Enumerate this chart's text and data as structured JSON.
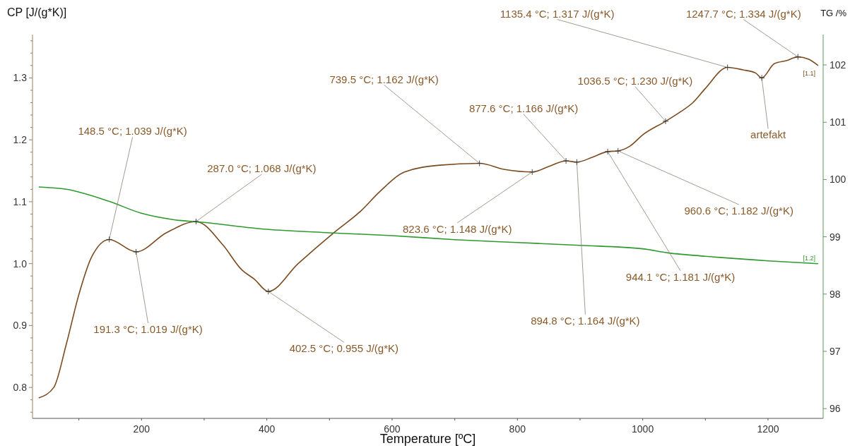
{
  "chart_data": {
    "type": "line",
    "xlabel": "Temperature [ºC]",
    "ylabel": "CP [J/(g*K)]",
    "y2label": "TG /%",
    "xlim": [
      26,
      1288
    ],
    "ylim": [
      0.75,
      1.37
    ],
    "y2lim": [
      95.83,
      102.53
    ],
    "xticks": [
      {
        "value": 100,
        "label": null
      },
      200,
      {
        "value": 300,
        "label": null
      },
      400,
      {
        "value": 500,
        "label": null
      },
      600,
      {
        "value": 700,
        "label": null
      },
      800,
      {
        "value": 900,
        "label": null
      },
      1000,
      {
        "value": 1100,
        "label": null
      },
      1200
    ],
    "yticks": [
      {
        "value": 0.76,
        "label": null
      },
      {
        "value": 0.78,
        "label": null
      },
      0.8,
      {
        "value": 0.82,
        "label": null
      },
      {
        "value": 0.84,
        "label": null
      },
      {
        "value": 0.86,
        "label": null
      },
      {
        "value": 0.88,
        "label": null
      },
      0.9,
      {
        "value": 0.92,
        "label": null
      },
      {
        "value": 0.94,
        "label": null
      },
      {
        "value": 0.96,
        "label": null
      },
      {
        "value": 0.98,
        "label": null
      },
      {
        "value": 1,
        "label": "1.0"
      },
      {
        "value": 1.02,
        "label": null
      },
      {
        "value": 1.04,
        "label": null
      },
      {
        "value": 1.06,
        "label": null
      },
      {
        "value": 1.08,
        "label": null
      },
      1.1,
      {
        "value": 1.12,
        "label": null
      },
      {
        "value": 1.14,
        "label": null
      },
      {
        "value": 1.16,
        "label": null
      },
      {
        "value": 1.18,
        "label": null
      },
      1.2,
      {
        "value": 1.22,
        "label": null
      },
      {
        "value": 1.24,
        "label": null
      },
      {
        "value": 1.26,
        "label": null
      },
      {
        "value": 1.28,
        "label": null
      },
      1.3,
      {
        "value": 1.32,
        "label": null
      },
      {
        "value": 1.34,
        "label": null
      },
      {
        "value": 1.36,
        "label": null
      }
    ],
    "y2ticks": [
      96,
      97,
      98,
      99,
      100,
      101,
      102
    ],
    "grid": false,
    "marker": "none",
    "line_style": "solid",
    "series": [
      {
        "name": "[1.1]",
        "color": "#7b4a1f",
        "x": [
          36,
          60,
          80,
          100,
          120,
          148.5,
          191.3,
          240,
          287,
          330,
          360,
          380,
          402.5,
          450,
          507,
          550,
          580,
          620,
          676,
          739.5,
          780,
          823.6,
          850,
          877.6,
          894.8,
          920,
          944.1,
          960.6,
          980,
          1000,
          1036.5,
          1060,
          1080,
          1100,
          1135.4,
          1160,
          1180,
          1190,
          1210,
          1230,
          1247.7,
          1265,
          1280
        ],
        "values": [
          0.783,
          0.8,
          0.87,
          0.95,
          1.01,
          1.039,
          1.019,
          1.05,
          1.068,
          1.03,
          0.99,
          0.975,
          0.955,
          1.0,
          1.05,
          1.085,
          1.116,
          1.148,
          1.159,
          1.162,
          1.152,
          1.148,
          1.157,
          1.166,
          1.164,
          1.172,
          1.181,
          1.182,
          1.19,
          1.208,
          1.23,
          1.245,
          1.26,
          1.283,
          1.317,
          1.313,
          1.308,
          1.3,
          1.323,
          1.328,
          1.334,
          1.33,
          1.32
        ]
      },
      {
        "name": "[1.2]",
        "color": "#2e9a2e",
        "axis": "y2",
        "x": [
          36,
          80,
          148,
          200,
          250,
          300,
          400,
          500,
          600,
          700,
          800,
          900,
          1000,
          1040,
          1100,
          1200,
          1280
        ],
        "values": [
          99.87,
          99.83,
          99.62,
          99.41,
          99.3,
          99.25,
          99.13,
          99.07,
          99.02,
          98.95,
          98.9,
          98.85,
          98.79,
          98.72,
          98.66,
          98.58,
          98.53
        ]
      }
    ],
    "annotations": [
      {
        "text": "148.5 °C; 1.039 J/(g*K)",
        "x": 148.5,
        "y": 1.039
      },
      {
        "text": "191.3 °C; 1.019 J/(g*K)",
        "x": 191.3,
        "y": 1.019
      },
      {
        "text": "287.0 °C; 1.068 J/(g*K)",
        "x": 287,
        "y": 1.068
      },
      {
        "text": "402.5 °C; 0.955 J/(g*K)",
        "x": 402.5,
        "y": 0.955
      },
      {
        "text": "739.5 °C; 1.162 J/(g*K)",
        "x": 739.5,
        "y": 1.162
      },
      {
        "text": "823.6 °C; 1.148 J/(g*K)",
        "x": 823.6,
        "y": 1.148
      },
      {
        "text": "877.6 °C; 1.166 J/(g*K)",
        "x": 877.6,
        "y": 1.166
      },
      {
        "text": "894.8 °C; 1.164 J/(g*K)",
        "x": 894.8,
        "y": 1.164
      },
      {
        "text": "944.1 °C; 1.181 J/(g*K)",
        "x": 944.1,
        "y": 1.181
      },
      {
        "text": "960.6 °C; 1.182 J/(g*K)",
        "x": 960.6,
        "y": 1.182
      },
      {
        "text": "1036.5 °C; 1.230 J/(g*K)",
        "x": 1036.5,
        "y": 1.23
      },
      {
        "text": "1135.4 °C; 1.317 J/(g*K)",
        "x": 1135.4,
        "y": 1.317
      },
      {
        "text": "1247.7 °C; 1.334 J/(g*K)",
        "x": 1247.7,
        "y": 1.334
      },
      {
        "text": "artefakt",
        "x": 1190,
        "y": 1.3
      }
    ]
  }
}
